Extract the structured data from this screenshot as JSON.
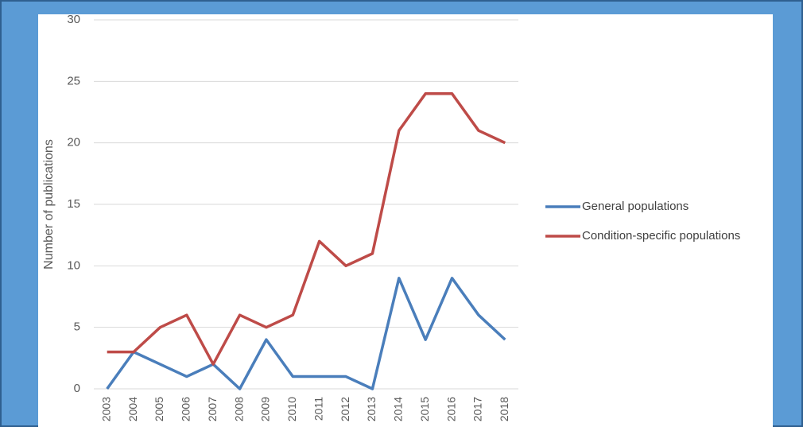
{
  "chart_data": {
    "type": "line",
    "y_label": "Number of publications",
    "categories": [
      "2003",
      "2004",
      "2005",
      "2006",
      "2007",
      "2008",
      "2009",
      "2010",
      "2011",
      "2012",
      "2013",
      "2014",
      "2015",
      "2016",
      "2017",
      "2018"
    ],
    "series": [
      {
        "name": "General populations",
        "color": "#4a7ebb",
        "values": [
          0,
          3,
          2,
          1,
          2,
          0,
          4,
          1,
          1,
          1,
          0,
          9,
          4,
          9,
          6,
          4
        ]
      },
      {
        "name": "Condition-specific populations",
        "color": "#be4b48",
        "values": [
          3,
          3,
          5,
          6,
          2,
          6,
          5,
          6,
          12,
          10,
          11,
          21,
          24,
          24,
          21,
          20
        ]
      }
    ],
    "ylim": [
      0,
      30
    ],
    "yticks": [
      0,
      5,
      10,
      15,
      20,
      25,
      30
    ],
    "grid": true,
    "legend": "right"
  }
}
